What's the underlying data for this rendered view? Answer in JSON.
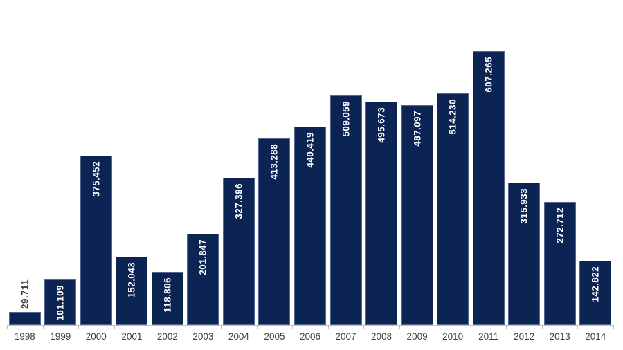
{
  "chart_data": {
    "type": "bar",
    "title": "",
    "xlabel": "",
    "ylabel": "",
    "categories": [
      "1998",
      "1999",
      "2000",
      "2001",
      "2002",
      "2003",
      "2004",
      "2005",
      "2006",
      "2007",
      "2008",
      "2009",
      "2010",
      "2011",
      "2012",
      "2013",
      "2014"
    ],
    "values": [
      29711,
      101109,
      375452,
      152043,
      118806,
      201847,
      327396,
      413288,
      440419,
      509059,
      495673,
      487097,
      514230,
      607265,
      315933,
      272712,
      142822
    ],
    "labels": [
      "29.711",
      "101.109",
      "375.452",
      "152.043",
      "118.806",
      "201.847",
      "327.396",
      "413.288",
      "440.419",
      "509.059",
      "495.673",
      "487.097",
      "514.230",
      "607.265",
      "315.933",
      "272.712",
      "142.822"
    ],
    "legend": "none",
    "grid": false,
    "y_axis_visible": false,
    "ylim": [
      0,
      620000
    ],
    "bar_color": "#0C2454",
    "bar_border_color": "#56668C",
    "label_color_inside": "#FFFFFF",
    "label_color_outside": "#404040",
    "axis_color": "#BFBFBF",
    "tick_label_color": "#3F3F3F"
  }
}
